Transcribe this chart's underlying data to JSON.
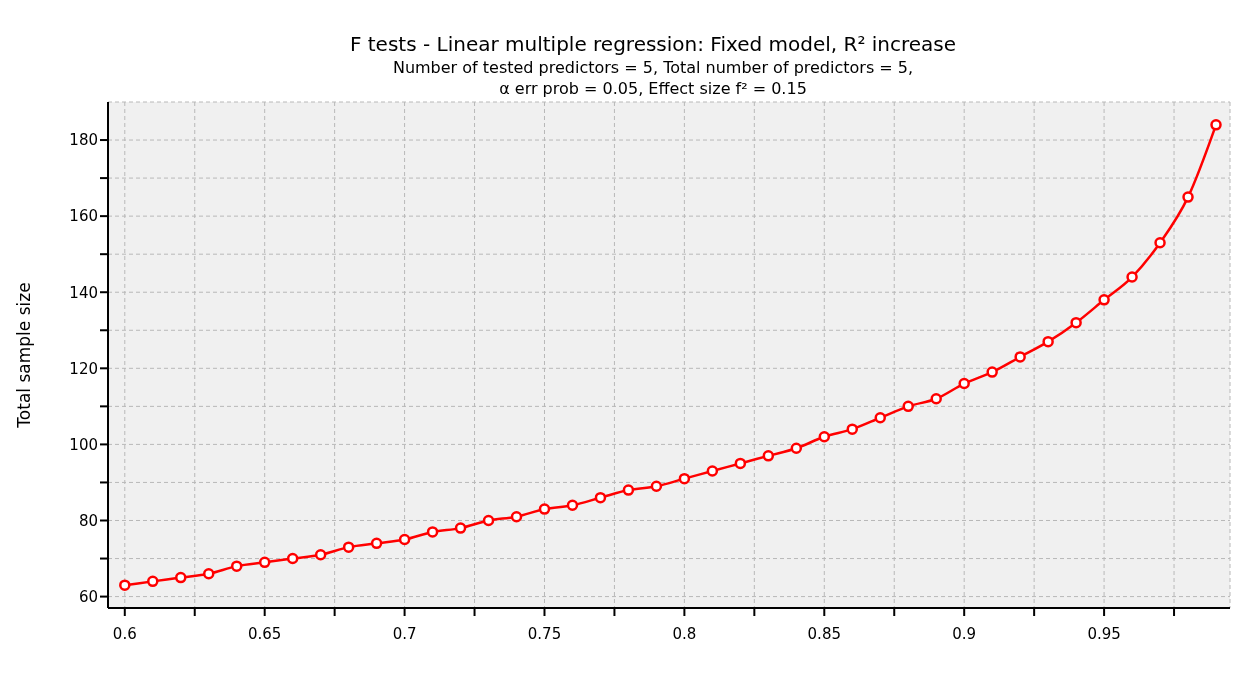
{
  "chart_data": {
    "type": "line",
    "title": "F tests - Linear multiple regression: Fixed model, R² increase",
    "subtitle": "Number of tested predictors = 5, Total number of predictors = 5,\nα err prob = 0.05, Effect size f² = 0.15",
    "ylabel": "Total sample size",
    "x": [
      0.6,
      0.61,
      0.62,
      0.63,
      0.64,
      0.65,
      0.66,
      0.67,
      0.68,
      0.69,
      0.7,
      0.71,
      0.72,
      0.73,
      0.74,
      0.75,
      0.76,
      0.77,
      0.78,
      0.79,
      0.8,
      0.81,
      0.82,
      0.83,
      0.84,
      0.85,
      0.86,
      0.87,
      0.88,
      0.89,
      0.9,
      0.91,
      0.92,
      0.93,
      0.94,
      0.95,
      0.96,
      0.97,
      0.98,
      0.99
    ],
    "series": [
      {
        "color": "#ff0000",
        "values": [
          63,
          64,
          65,
          66,
          68,
          69,
          70,
          71,
          73,
          74,
          75,
          77,
          78,
          80,
          81,
          83,
          84,
          86,
          88,
          89,
          91,
          93,
          95,
          97,
          99,
          102,
          104,
          107,
          110,
          112,
          116,
          119,
          123,
          127,
          132,
          138,
          144,
          153,
          165,
          184
        ]
      }
    ],
    "xlim": [
      0.594,
      0.995
    ],
    "ylim": [
      57,
      190
    ],
    "xticks": [
      0.6,
      {
        "value": 0.625,
        "label": null
      },
      0.65,
      {
        "value": 0.675,
        "label": null
      },
      0.7,
      {
        "value": 0.725,
        "label": null
      },
      0.75,
      {
        "value": 0.775,
        "label": null
      },
      0.8,
      {
        "value": 0.825,
        "label": null
      },
      0.85,
      {
        "value": 0.875,
        "label": null
      },
      0.9,
      {
        "value": 0.925,
        "label": null
      },
      0.95,
      {
        "value": 0.975,
        "label": null
      }
    ],
    "yticks": [
      60,
      {
        "value": 70,
        "label": null
      },
      80,
      {
        "value": 90,
        "label": null
      },
      100,
      {
        "value": 110,
        "label": null
      },
      120,
      {
        "value": 130,
        "label": null
      },
      140,
      {
        "value": 150,
        "label": null
      },
      160,
      {
        "value": 170,
        "label": null
      },
      180
    ],
    "grid": true,
    "marker": "circle",
    "line_style": "solid",
    "legend": false
  }
}
